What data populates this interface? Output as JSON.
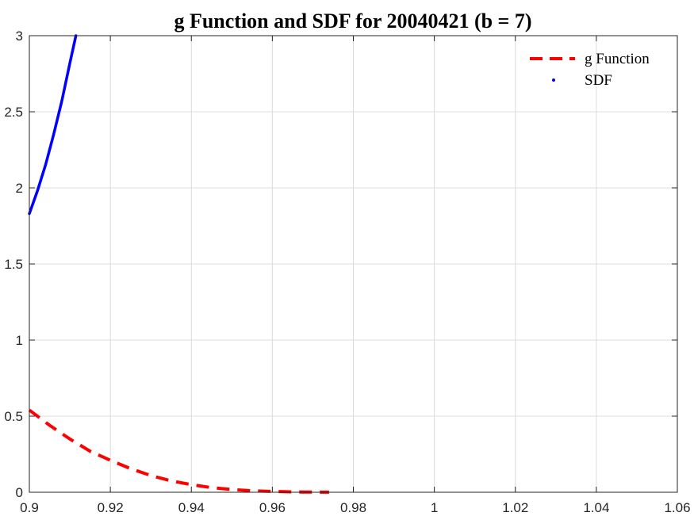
{
  "chart_data": {
    "type": "line",
    "title": "g Function and SDF for 20040421 (b = 7)",
    "xlabel": "",
    "ylabel": "",
    "xlim": [
      0.9,
      1.06
    ],
    "ylim": [
      0,
      3
    ],
    "xticks": [
      0.9,
      0.92,
      0.94,
      0.96,
      0.98,
      1,
      1.02,
      1.04,
      1.06
    ],
    "yticks": [
      0,
      0.5,
      1,
      1.5,
      2,
      2.5,
      3
    ],
    "grid": true,
    "legend_position": "top-right",
    "series": [
      {
        "name": "g Function",
        "color": "#ff0000",
        "style": "dashed",
        "x": [
          0.9,
          0.905,
          0.91,
          0.915,
          0.92,
          0.925,
          0.93,
          0.935,
          0.94,
          0.945,
          0.95,
          0.955,
          0.96,
          0.965,
          0.97,
          0.974
        ],
        "y": [
          0.54,
          0.44,
          0.35,
          0.27,
          0.21,
          0.155,
          0.11,
          0.075,
          0.05,
          0.03,
          0.018,
          0.01,
          0.005,
          0.002,
          0.001,
          0.0005
        ]
      },
      {
        "name": "SDF",
        "color": "#0000ff",
        "style": "dotted-points",
        "x": [
          0.9,
          0.902,
          0.904,
          0.906,
          0.908,
          0.91,
          0.9115
        ],
        "y": [
          1.83,
          1.98,
          2.15,
          2.35,
          2.57,
          2.82,
          3.0
        ]
      }
    ]
  }
}
